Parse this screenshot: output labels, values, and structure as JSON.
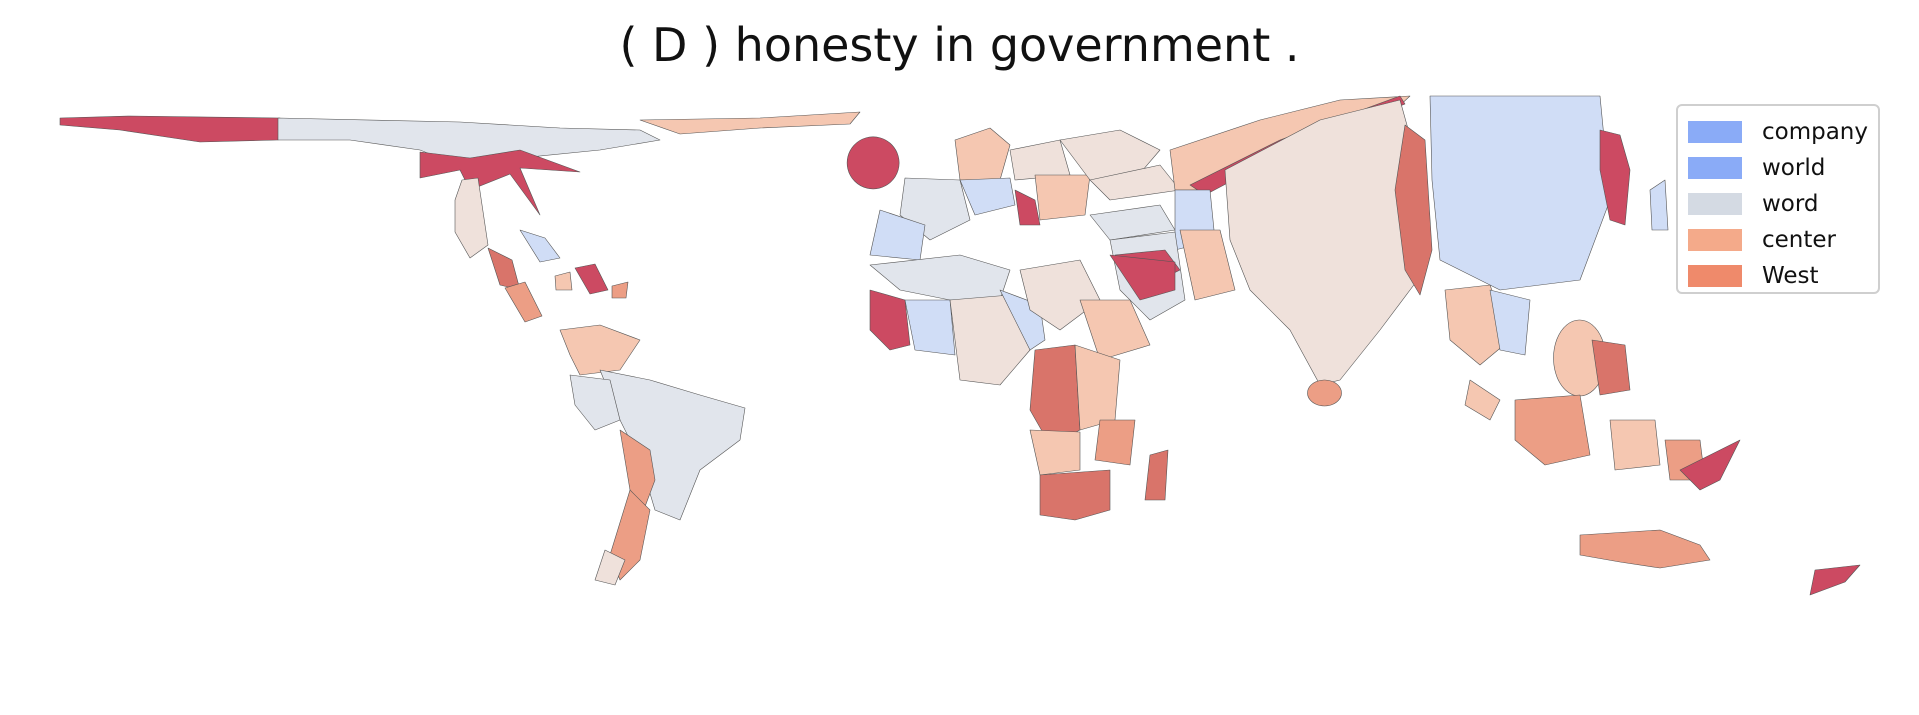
{
  "title": "( D ) honesty in government .",
  "legend": [
    {
      "label": "company",
      "color": "#8aabf7"
    },
    {
      "label": "world",
      "color": "#8aabf7"
    },
    {
      "label": "word",
      "color": "#d4dae3"
    },
    {
      "label": "center",
      "color": "#f4aa8a"
    },
    {
      "label": "West",
      "color": "#ef8a6b"
    }
  ],
  "palette": {
    "light_blue": "#d0ddf6",
    "pale_gray": "#e1e5ec",
    "pale_beige": "#efe1db",
    "light_salmon": "#f5c7b1",
    "salmon": "#ec9e85",
    "red_salmon": "#d9746a",
    "crimson": "#cc4a62"
  }
}
